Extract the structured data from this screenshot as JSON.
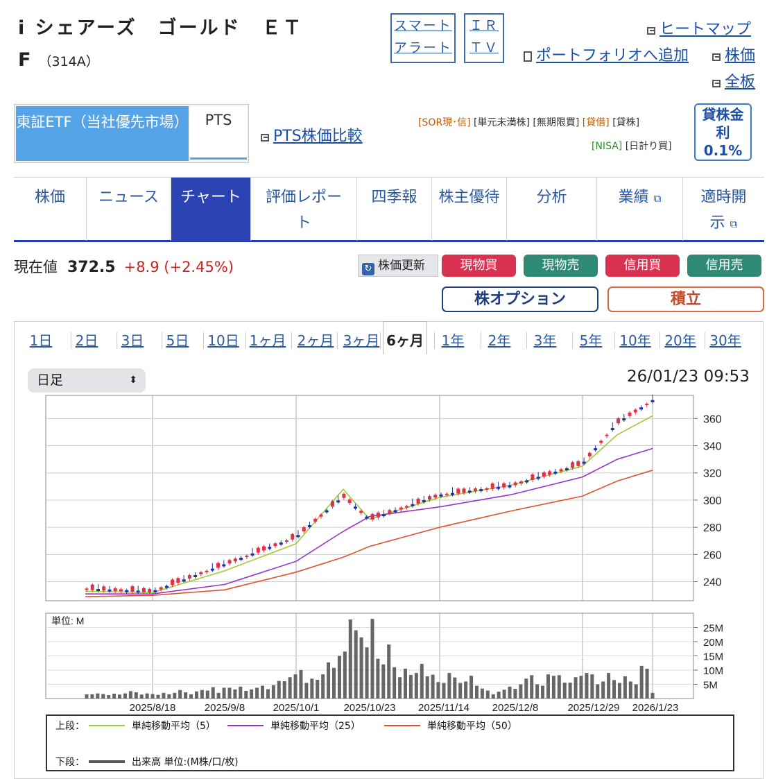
{
  "header": {
    "title_line1": "i シェアーズ　ゴールド　ＥＴ",
    "title_line2": "F",
    "code": "（314A）",
    "smart_alert": [
      "スマート",
      "アラート"
    ],
    "irtv": [
      "ＩＲ",
      "ＴＶ"
    ],
    "links": {
      "heatmap": "ヒートマップ",
      "portfolio": "ポートフォリオへ追加",
      "stock_price": "株価",
      "full_board": "全板"
    }
  },
  "market": {
    "active": "東証ETF（当社優先市場）",
    "pts": "PTS",
    "pts_compare": "PTS株価比較",
    "tags_line1": [
      "[SOR現･信]",
      "[単元未満株]",
      "[無期限買]",
      "[貸借]",
      "[貸株]"
    ],
    "tags_line2": [
      "[NISA]",
      "[日計り買]"
    ],
    "lending": {
      "label1": "貸株金",
      "label2": "利",
      "rate": "0.1%"
    }
  },
  "nav_tabs": [
    {
      "label": "株価"
    },
    {
      "label": "ニュース"
    },
    {
      "label": "チャート",
      "active": true
    },
    {
      "label": "評価レポート"
    },
    {
      "label": "四季報"
    },
    {
      "label": "株主優待"
    },
    {
      "label": "分析"
    },
    {
      "label": "業績",
      "external": true
    },
    {
      "label": "適時開示",
      "external": true
    }
  ],
  "quote": {
    "label": "現在値",
    "value": "372.5",
    "change": "+8.9",
    "change_pct": "(+2.45%)"
  },
  "actions": {
    "refresh": "株価更新",
    "spot_buy": "現物買",
    "spot_sell": "現物売",
    "margin_buy": "信用買",
    "margin_sell": "信用売",
    "option": "株オプション",
    "accumulate": "積立",
    "colors": {
      "buy": "#d93250",
      "sell": "#2e8a75"
    }
  },
  "period_tabs": [
    "1日",
    "2日",
    "3日",
    "5日",
    "10日",
    "1ヶ月",
    "2ヶ月",
    "3ヶ月",
    "6ヶ月",
    "1年",
    "2年",
    "3年",
    "5年",
    "10年",
    "20年",
    "30年"
  ],
  "period_active": "6ヶ月",
  "chart_controls": {
    "interval": "日足",
    "timestamp": "26/01/23 09:53"
  },
  "chart_data": [
    {
      "type": "line",
      "title": "",
      "ylim": [
        226,
        377
      ],
      "yticks": [
        240,
        260,
        280,
        300,
        320,
        340,
        360
      ],
      "xticks": [
        "2025/8/18",
        "2025/9/8",
        "2025/10/1",
        "2025/10/23",
        "2025/11/14",
        "2025/12/8",
        "2025/12/29",
        "2026/1/23"
      ],
      "x": [
        "2025/8/1",
        "2025/8/18",
        "2025/9/8",
        "2025/10/1",
        "2025/10/14",
        "2025/10/23",
        "2025/11/14",
        "2025/12/8",
        "2025/12/29",
        "2026/1/14",
        "2026/1/23"
      ],
      "candles_close": [
        234,
        232,
        252,
        272,
        302,
        285,
        303,
        310,
        326,
        356,
        372.5
      ],
      "series": [
        {
          "name": "単純移動平均（5）",
          "color": "#9acd32",
          "values": [
            233,
            232,
            248,
            268,
            308,
            286,
            302,
            311,
            325,
            348,
            362
          ]
        },
        {
          "name": "単純移動平均（25）",
          "color": "#9932cc",
          "values": [
            231,
            231,
            238,
            255,
            277,
            288,
            295,
            304,
            317,
            330,
            338
          ]
        },
        {
          "name": "単純移動平均（50）",
          "color": "#e0522e",
          "values": [
            229,
            230,
            234,
            247,
            258,
            266,
            280,
            292,
            303,
            314,
            322
          ]
        }
      ],
      "colors": {
        "up": "#e0304a",
        "down": "#2432a0"
      }
    },
    {
      "type": "bar",
      "unit_label": "単位: M",
      "yticks": [
        "5M",
        "10M",
        "15M",
        "20M",
        "25M"
      ],
      "ylim": [
        0,
        30
      ],
      "series": [
        {
          "name": "出来高 単位:(M株/口/枚)",
          "values": [
            1.5,
            1.5,
            1.8,
            1.6,
            1.2,
            1.7,
            1.4,
            1.8,
            2.6,
            2.2,
            1.4,
            1.8,
            1.6,
            1.3,
            2.0,
            1.5,
            2.0,
            3.0,
            2.2,
            1.5,
            2.5,
            3.0,
            2.8,
            4.0,
            2.0,
            3.8,
            3.8,
            3.2,
            4.2,
            2.7,
            3.2,
            3.8,
            4.5,
            3.3,
            4.7,
            6.2,
            6.1,
            7.5,
            8.5,
            10.0,
            5.5,
            7.0,
            6.6,
            8.5,
            12.7,
            10.8,
            15.0,
            16.5,
            27.8,
            24.0,
            21.5,
            18.0,
            28.0,
            14.0,
            12.0,
            19.0,
            11.0,
            7.5,
            10.5,
            8.3,
            9.0,
            12.2,
            7.8,
            8.4,
            5.8,
            5.5,
            9.0,
            7.4,
            5.5,
            6.0,
            8.0,
            4.5,
            3.5,
            2.8,
            1.5,
            2.4,
            3.1,
            4.2,
            3.4,
            5.0,
            7.0,
            8.2,
            5.0,
            4.5,
            8.5,
            8.0,
            8.2,
            5.6,
            5.6,
            7.5,
            8.0,
            9.0,
            8.5,
            5.0,
            6.0,
            9.0,
            6.5,
            5.5,
            7.8,
            6.0,
            5.0,
            11.5,
            10.5,
            2.0
          ]
        }
      ]
    }
  ],
  "legend": {
    "upper_label": "上段：",
    "lower_label": "下段：",
    "ma5": "単純移動平均（5）",
    "ma25": "単純移動平均（25）",
    "ma50": "単純移動平均（50）",
    "volume": "出来高 単位:(M株/口/枚)"
  }
}
